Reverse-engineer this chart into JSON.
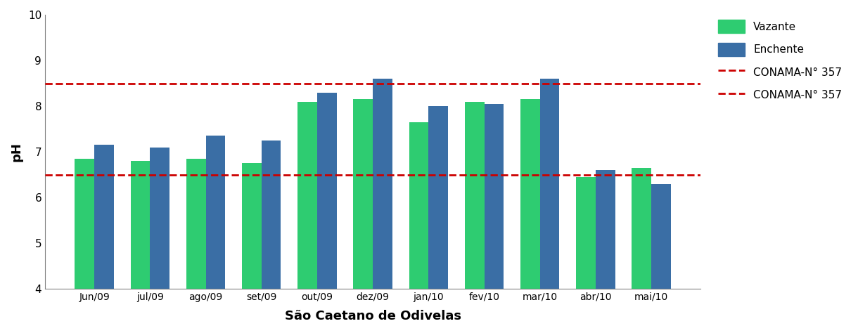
{
  "categories": [
    "Jun/09",
    "jul/09",
    "ago/09",
    "set/09",
    "out/09",
    "dez/09",
    "jan/10",
    "fev/10",
    "mar/10",
    "abr/10",
    "mai/10"
  ],
  "vazante": [
    6.85,
    6.8,
    6.85,
    6.75,
    8.1,
    8.15,
    7.65,
    8.1,
    8.15,
    6.45,
    6.65
  ],
  "enchente": [
    7.15,
    7.1,
    7.35,
    7.25,
    8.3,
    8.6,
    8.0,
    8.05,
    8.6,
    6.6,
    6.3
  ],
  "conama_high": 8.5,
  "conama_low": 6.5,
  "color_vazante": "#2ecc71",
  "color_enchente": "#3a6ea5",
  "color_conama": "#cc0000",
  "ylim": [
    4,
    10
  ],
  "yticks": [
    4,
    5,
    6,
    7,
    8,
    9,
    10
  ],
  "xlabel": "São Caetano de Odivelas",
  "ylabel": "pH",
  "legend_vazante": "Vazante",
  "legend_enchente": "Enchente",
  "legend_conama1": "CONAMA-N° 357",
  "legend_conama2": "CONAMA-N° 357",
  "bar_width": 0.35,
  "ybase": 4
}
